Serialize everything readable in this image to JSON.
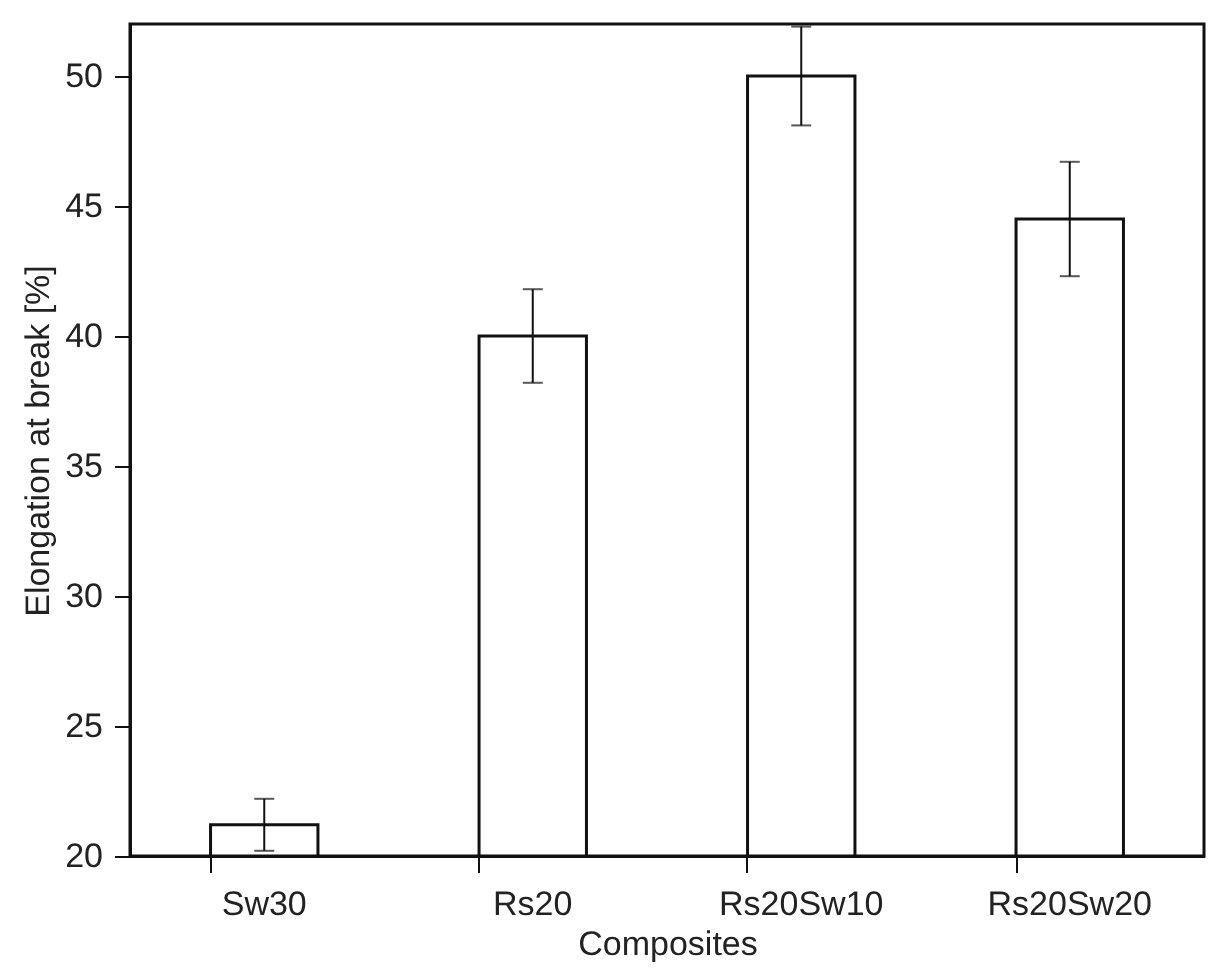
{
  "chart_data": {
    "type": "bar",
    "xlabel": "Composites",
    "ylabel": "Elongation at break [%]",
    "categories": [
      "Sw30",
      "Rs20",
      "Rs20Sw10",
      "Rs20Sw20"
    ],
    "series": [
      {
        "color": "#ffffff",
        "values": [
          21.2,
          40,
          50,
          44.5
        ],
        "errors": [
          1.0,
          1.8,
          1.9,
          2.2
        ]
      }
    ],
    "ylim": [
      20,
      52
    ],
    "yticks": [
      20,
      25,
      30,
      35,
      40,
      45,
      50
    ],
    "grid": false
  }
}
